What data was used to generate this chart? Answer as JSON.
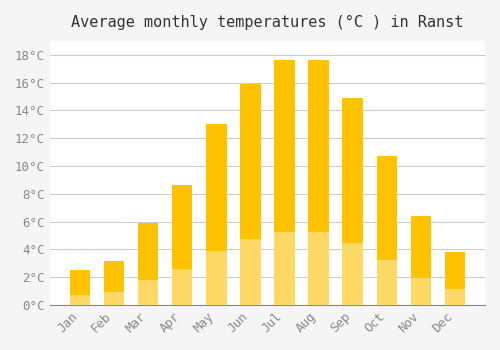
{
  "title": "Average monthly temperatures (°C ) in Ranst",
  "months": [
    "Jan",
    "Feb",
    "Mar",
    "Apr",
    "May",
    "Jun",
    "Jul",
    "Aug",
    "Sep",
    "Oct",
    "Nov",
    "Dec"
  ],
  "values": [
    2.5,
    3.2,
    5.9,
    8.6,
    13.0,
    15.9,
    17.6,
    17.6,
    14.9,
    10.7,
    6.4,
    3.8
  ],
  "bar_color_top": "#FFC200",
  "bar_color_bottom": "#FFD966",
  "background_color": "#F5F5F5",
  "plot_bg_color": "#FFFFFF",
  "grid_color": "#CCCCCC",
  "text_color": "#888888",
  "ylim": [
    0,
    19
  ],
  "yticks": [
    0,
    2,
    4,
    6,
    8,
    10,
    12,
    14,
    16,
    18
  ],
  "title_fontsize": 11,
  "tick_fontsize": 9,
  "font_family": "monospace"
}
